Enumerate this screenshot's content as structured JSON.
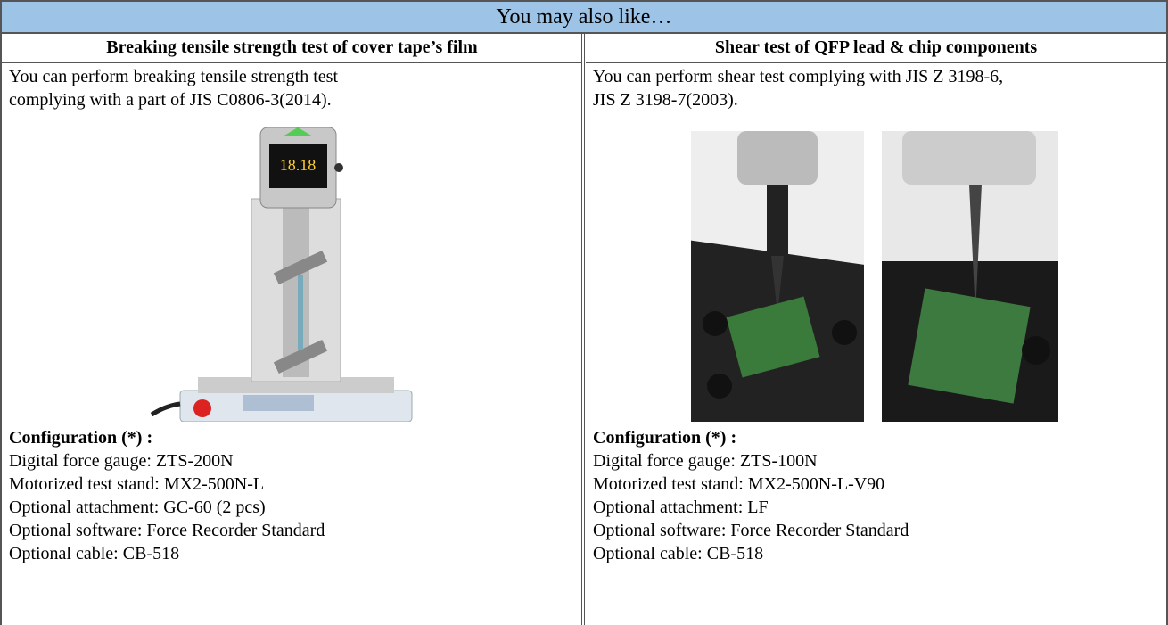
{
  "header": {
    "title": "You may also like…"
  },
  "columns": [
    {
      "title": "Breaking tensile strength test of cover tape’s film",
      "description": [
        "You can perform breaking tensile strength test",
        "complying with a part of JIS C0806-3(2014)."
      ],
      "configuration_label": "Configuration (*) :",
      "configuration": [
        "Digital force gauge: ZTS-200N",
        "Motorized test stand: MX2-500N-L",
        "Optional attachment: GC-60 (2 pcs)",
        "Optional software: Force Recorder Standard",
        "Optional cable: CB-518"
      ]
    },
    {
      "title": "Shear test of QFP lead & chip components",
      "description": [
        "You can perform shear test complying with JIS Z 3198-6,",
        "JIS Z 3198-7(2003)."
      ],
      "configuration_label": "Configuration (*) :",
      "configuration": [
        "Digital force gauge: ZTS-100N",
        "Motorized test stand: MX2-500N-L-V90",
        "Optional attachment: LF",
        "Optional software: Force Recorder Standard",
        "Optional cable: CB-518"
      ]
    }
  ]
}
